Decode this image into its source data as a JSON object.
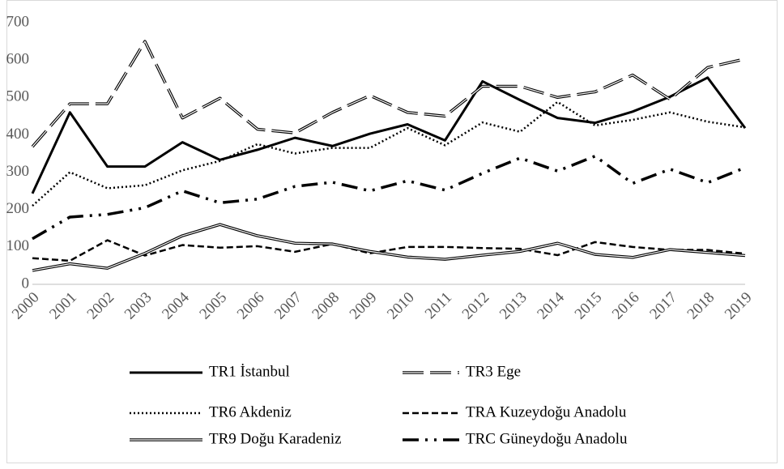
{
  "chart_data": {
    "type": "line",
    "categories": [
      "2000",
      "2001",
      "2002",
      "2003",
      "2004",
      "2005",
      "2006",
      "2007",
      "2008",
      "2009",
      "2010",
      "2011",
      "2012",
      "2013",
      "2014",
      "2015",
      "2016",
      "2017",
      "2018",
      "2019"
    ],
    "ylim": [
      0,
      700
    ],
    "yticks": [
      0,
      100,
      200,
      300,
      400,
      500,
      600,
      700
    ],
    "grid": false,
    "series": [
      {
        "name": "TR1 İstanbul",
        "color": "#000000",
        "style": "solid",
        "values": [
          243,
          460,
          315,
          315,
          380,
          333,
          360,
          392,
          370,
          403,
          428,
          385,
          543,
          493,
          445,
          432,
          462,
          502,
          553,
          418
        ]
      },
      {
        "name": "TR3 Ege",
        "color": "#000000",
        "style": "double-dash",
        "values": [
          368,
          483,
          483,
          650,
          445,
          498,
          415,
          405,
          460,
          505,
          460,
          450,
          530,
          530,
          500,
          515,
          560,
          495,
          580,
          603
        ]
      },
      {
        "name": "TR6 Akdeniz",
        "color": "#000000",
        "style": "dotted",
        "values": [
          210,
          300,
          257,
          265,
          305,
          330,
          375,
          350,
          365,
          365,
          418,
          372,
          433,
          408,
          488,
          425,
          440,
          460,
          435,
          420
        ]
      },
      {
        "name": "TRA Kuzeydoğu Anadolu",
        "color": "#000000",
        "style": "dashed",
        "values": [
          70,
          63,
          118,
          77,
          105,
          98,
          102,
          87,
          108,
          83,
          100,
          100,
          97,
          95,
          78,
          113,
          100,
          92,
          92,
          82
        ]
      },
      {
        "name": "TR9 Doğu Karadeniz",
        "color": "#000000",
        "style": "double",
        "values": [
          37,
          55,
          43,
          83,
          130,
          160,
          130,
          110,
          108,
          88,
          73,
          67,
          78,
          88,
          110,
          80,
          72,
          93,
          85,
          77
        ]
      },
      {
        "name": "TRC Güneydoğu Anadolu",
        "color": "#000000",
        "style": "dash-dot",
        "values": [
          122,
          180,
          187,
          205,
          250,
          218,
          228,
          262,
          273,
          250,
          277,
          252,
          297,
          338,
          303,
          343,
          270,
          308,
          272,
          312
        ]
      }
    ]
  }
}
